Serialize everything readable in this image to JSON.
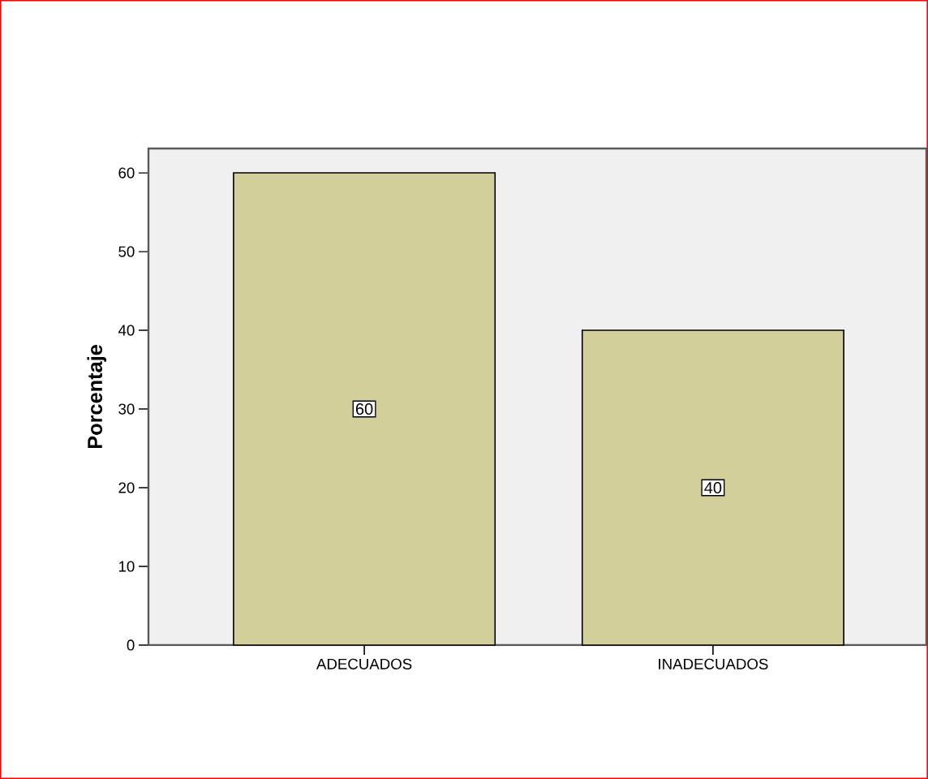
{
  "chart_data": {
    "type": "bar",
    "ylabel": "Porcentaje",
    "categories": [
      "ADECUADOS",
      "INADECUADOS"
    ],
    "values": [
      60,
      40
    ],
    "color": "#d3cf9b",
    "ylim": [
      0,
      63.1
    ],
    "yticks": [
      0,
      10,
      20,
      30,
      40,
      50,
      60
    ],
    "data_labels": true
  }
}
